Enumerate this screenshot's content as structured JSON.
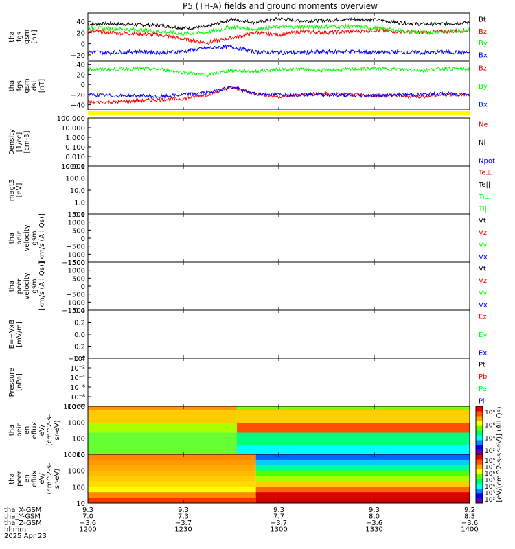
{
  "title": "P5 (TH-A) fields and ground moments overview",
  "colors": {
    "black": "#000000",
    "red": "#ff0000",
    "green": "#00ff00",
    "blue": "#0000ff",
    "yellow": "#ffff00"
  },
  "chart_data": [
    {
      "type": "line",
      "ylabel": [
        "tha",
        "fgs",
        "gsm",
        "[nT]"
      ],
      "yticks": [
        "40",
        "20",
        "0",
        "−20"
      ],
      "yticks_values": [
        40,
        20,
        0,
        -20
      ],
      "ylim": [
        -30,
        55
      ],
      "series": [
        {
          "name": "Bt",
          "color": "#000000",
          "values": [
            35,
            36,
            34,
            33,
            28,
            30,
            44,
            38,
            45,
            41,
            42,
            44,
            43,
            38,
            35,
            36,
            38
          ]
        },
        {
          "name": "Bz",
          "color": "#ff0000",
          "values": [
            22,
            20,
            18,
            16,
            8,
            2,
            10,
            20,
            16,
            22,
            20,
            22,
            24,
            22,
            20,
            22,
            24
          ]
        },
        {
          "name": "By",
          "color": "#00ff00",
          "values": [
            28,
            27,
            25,
            22,
            18,
            20,
            30,
            26,
            30,
            30,
            31,
            31,
            28,
            24,
            20,
            22,
            24
          ]
        },
        {
          "name": "Bx",
          "color": "#0000ff",
          "values": [
            -15,
            -16,
            -14,
            -16,
            -14,
            -8,
            -5,
            -15,
            -16,
            -16,
            -15,
            -14,
            -16,
            -15,
            -16,
            -15,
            -16
          ]
        }
      ]
    },
    {
      "type": "line",
      "ylabel": [
        "tha",
        "fgs",
        "gsm",
        "dsl",
        "[nT]"
      ],
      "yticks": [
        "40",
        "20",
        "0",
        "−20",
        "−40"
      ],
      "yticks_values": [
        40,
        20,
        0,
        -20,
        -40
      ],
      "ylim": [
        -50,
        45
      ],
      "series": [
        {
          "name": "Bz",
          "color": "#ff0000",
          "values": [
            -35,
            -35,
            -32,
            -30,
            -28,
            -20,
            -5,
            -18,
            -24,
            -20,
            -18,
            -20,
            -22,
            -22,
            -24,
            -20,
            -20
          ]
        },
        {
          "name": "By",
          "color": "#00ff00",
          "values": [
            30,
            30,
            31,
            30,
            24,
            18,
            28,
            26,
            30,
            30,
            28,
            30,
            32,
            30,
            28,
            32,
            30
          ]
        },
        {
          "name": "Bx",
          "color": "#0000ff",
          "values": [
            -20,
            -22,
            -22,
            -24,
            -20,
            -16,
            -5,
            -18,
            -20,
            -20,
            -20,
            -22,
            -22,
            -20,
            -20,
            -18,
            -20
          ]
        }
      ]
    },
    {
      "type": "line",
      "ylabel": [
        "Density",
        "[1/cc]",
        "[cm-3]"
      ],
      "yticks": [
        "100.000",
        "10.000",
        "1.000",
        "0.100",
        "0.010",
        "0.001"
      ],
      "series": [
        {
          "name": "Ne",
          "color": "#ff0000",
          "values": []
        },
        {
          "name": "Ni",
          "color": "#000000",
          "values": []
        },
        {
          "name": "Npot",
          "color": "#0000ff",
          "values": []
        }
      ]
    },
    {
      "type": "line",
      "ylabel": [
        "magt3",
        "[eV]"
      ],
      "yticks": [
        "1000.0",
        "100.0",
        "10.0",
        "1.0",
        "0.1"
      ],
      "series": [
        {
          "name": "Te⊥",
          "color": "#ff0000",
          "values": []
        },
        {
          "name": "Te||",
          "color": "#000000",
          "values": []
        },
        {
          "name": "Ti⊥",
          "color": "#00ff00",
          "values": []
        },
        {
          "name": "Ti||",
          "color": "#00ff00",
          "values": []
        }
      ]
    },
    {
      "type": "line",
      "ylabel": [
        "tha",
        "peir",
        "velocity",
        "gsm",
        "[km/s (All Qs)]"
      ],
      "yticks": [
        "1500",
        "1000",
        "500",
        "0",
        "−500",
        "−1000",
        "−1500"
      ],
      "series": [
        {
          "name": "Vt",
          "color": "#000000",
          "values": []
        },
        {
          "name": "Vz",
          "color": "#ff0000",
          "values": []
        },
        {
          "name": "Vy",
          "color": "#00ff00",
          "values": []
        },
        {
          "name": "Vx",
          "color": "#0000ff",
          "values": []
        }
      ]
    },
    {
      "type": "line",
      "ylabel": [
        "tha",
        "peer",
        "velocity",
        "gsm",
        "[km/s (All Qs)]"
      ],
      "yticks": [
        "1500",
        "1000",
        "500",
        "0",
        "−500",
        "−1000",
        "−1500"
      ],
      "series": [
        {
          "name": "Vt",
          "color": "#000000",
          "values": []
        },
        {
          "name": "Vz",
          "color": "#ff0000",
          "values": []
        },
        {
          "name": "Vy",
          "color": "#00ff00",
          "values": []
        },
        {
          "name": "Vx",
          "color": "#0000ff",
          "values": []
        }
      ]
    },
    {
      "type": "line",
      "ylabel": [
        "E=−VxB",
        "[mV/m]"
      ],
      "yticks": [
        "0.4",
        "0.2",
        "0.0",
        "−0.2",
        "−0.4"
      ],
      "series": [
        {
          "name": "Ez",
          "color": "#ff0000",
          "values": []
        },
        {
          "name": "Ey",
          "color": "#00ff00",
          "values": []
        },
        {
          "name": "Ex",
          "color": "#0000ff",
          "values": []
        }
      ]
    },
    {
      "type": "line",
      "ylabel": [
        "Pressure",
        "[nPa]"
      ],
      "yticks": [
        "10⁰",
        "10⁻²",
        "10⁻⁴",
        "10⁻⁶",
        "10⁻⁸",
        "10⁻¹⁰"
      ],
      "series": [
        {
          "name": "Pt",
          "color": "#000000",
          "values": []
        },
        {
          "name": "Pb",
          "color": "#ff0000",
          "values": []
        },
        {
          "name": "Pe",
          "color": "#00ff00",
          "values": []
        },
        {
          "name": "Pi",
          "color": "#0000ff",
          "values": []
        }
      ]
    },
    {
      "type": "heatmap",
      "ylabel": [
        "tha",
        "peir",
        "en",
        "eflux",
        "eV/",
        "(cm^2-s-",
        "sr-eV)"
      ],
      "yticks": [
        "10000",
        "1000",
        "100",
        "10"
      ],
      "colorbar_ticks": [
        "10⁸",
        "10⁶",
        "10⁴",
        "10²"
      ]
    },
    {
      "type": "heatmap",
      "ylabel": [
        "tha",
        "peer",
        "en",
        "eflux",
        "eV/",
        "(cm^2-s-",
        "sr-eV)"
      ],
      "yticks": [
        "10000",
        "1000",
        "100",
        "10"
      ],
      "colorbar_ticks": [
        "10⁸",
        "10⁷",
        "10⁶",
        "10⁵",
        "10⁴",
        "10³",
        "10²"
      ]
    }
  ],
  "colorbar_label": "[eV/(cm^2-s-sr-eV)] (All Qs)",
  "x_axis": {
    "row_labels": [
      "tha_X-GSM",
      "tha_Y-GSM",
      "tha_Z-GSM",
      "hhmm",
      "2025 Apr 23"
    ],
    "columns": [
      [
        "9.3",
        "7.0",
        "−3.6",
        "1200"
      ],
      [
        "9.3",
        "7.3",
        "−3.7",
        "1230"
      ],
      [
        "9.3",
        "7.7",
        "−3.7",
        "1300"
      ],
      [
        "9.3",
        "8.0",
        "−3.6",
        "1330"
      ],
      [
        "9.2",
        "8.3",
        "−3.6",
        "1400"
      ]
    ]
  }
}
